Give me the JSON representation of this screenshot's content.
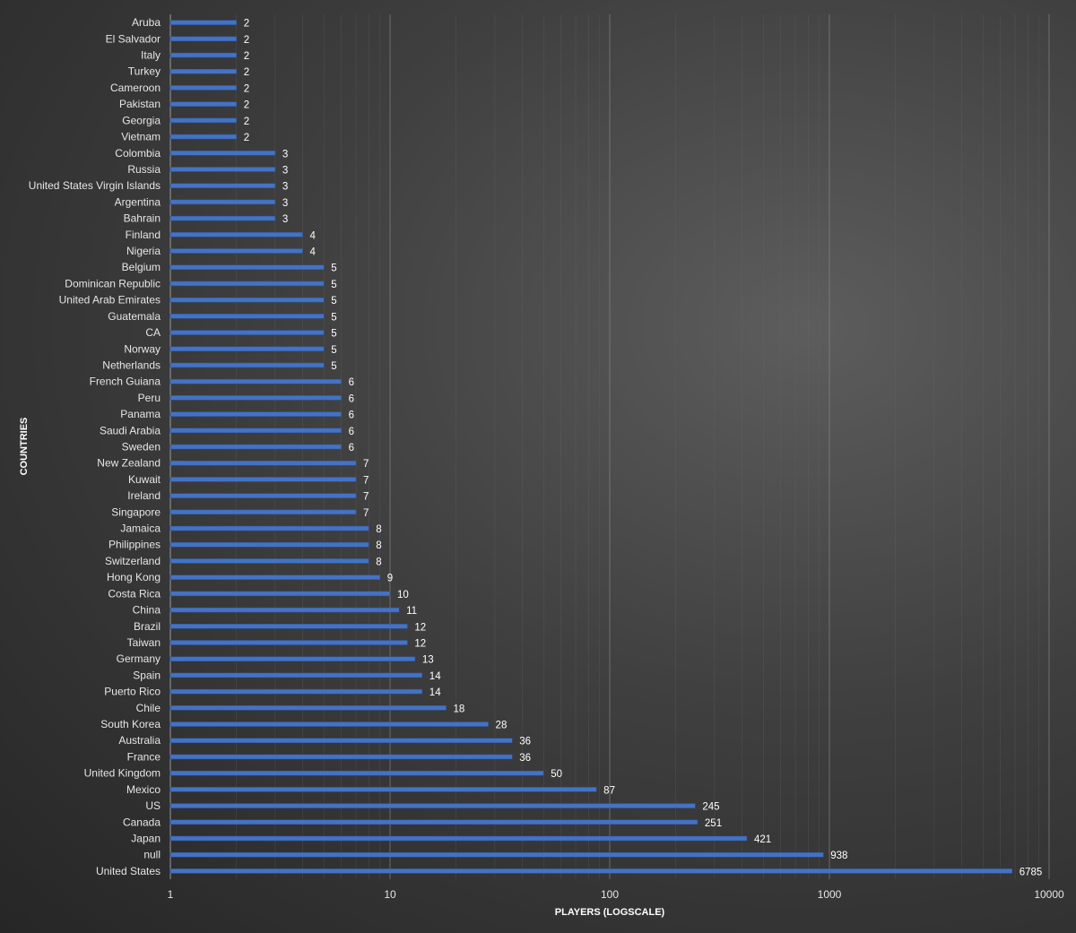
{
  "chart_data": {
    "type": "bar",
    "orientation": "horizontal",
    "xscale": "log",
    "xlim": [
      1,
      10000
    ],
    "xticks": [
      "1",
      "10",
      "100",
      "1000",
      "10000"
    ],
    "xlabel": "PLAYERS (LOGSCALE)",
    "ylabel": "COUNTRIES",
    "grid": true,
    "legend": "none",
    "bar_color": "#4472c4",
    "categories": [
      "Aruba",
      "El Salvador",
      "Italy",
      "Turkey",
      "Cameroon",
      "Pakistan",
      "Georgia",
      "Vietnam",
      "Colombia",
      "Russia",
      "United States Virgin Islands",
      "Argentina",
      "Bahrain",
      "Finland",
      "Nigeria",
      "Belgium",
      "Dominican Republic",
      "United Arab Emirates",
      "Guatemala",
      "CA",
      "Norway",
      "Netherlands",
      "French Guiana",
      "Peru",
      "Panama",
      "Saudi Arabia",
      "Sweden",
      "New Zealand",
      "Kuwait",
      "Ireland",
      "Singapore",
      "Jamaica",
      "Philippines",
      "Switzerland",
      "Hong Kong",
      "Costa Rica",
      "China",
      "Brazil",
      "Taiwan",
      "Germany",
      "Spain",
      "Puerto Rico",
      "Chile",
      "South Korea",
      "Australia",
      "France",
      "United Kingdom",
      "Mexico",
      "US",
      "Canada",
      "Japan",
      "null",
      "United States"
    ],
    "values": [
      2,
      2,
      2,
      2,
      2,
      2,
      2,
      2,
      3,
      3,
      3,
      3,
      3,
      4,
      4,
      5,
      5,
      5,
      5,
      5,
      5,
      5,
      6,
      6,
      6,
      6,
      6,
      7,
      7,
      7,
      7,
      8,
      8,
      8,
      9,
      10,
      11,
      12,
      12,
      13,
      14,
      14,
      18,
      28,
      36,
      36,
      50,
      87,
      245,
      251,
      421,
      938,
      6785
    ]
  }
}
